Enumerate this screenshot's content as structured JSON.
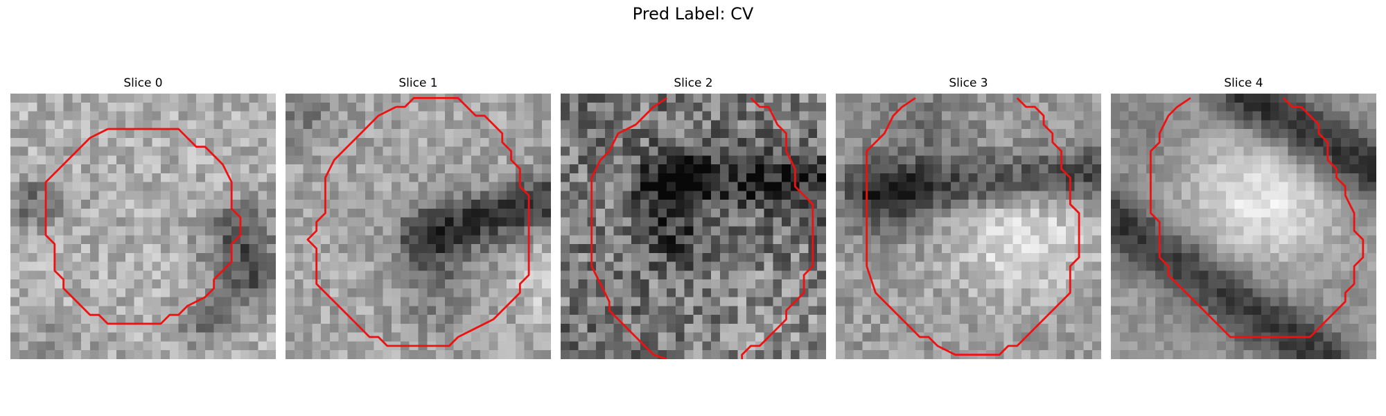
{
  "figure": {
    "suptitle": "Pred Label: CV"
  },
  "panels": [
    {
      "title": "Slice 0"
    },
    {
      "title": "Slice 1"
    },
    {
      "title": "Slice 2"
    },
    {
      "title": "Slice 3"
    },
    {
      "title": "Slice 4"
    }
  ],
  "colors": {
    "contour": "#ee1111",
    "background": "#ffffff"
  }
}
